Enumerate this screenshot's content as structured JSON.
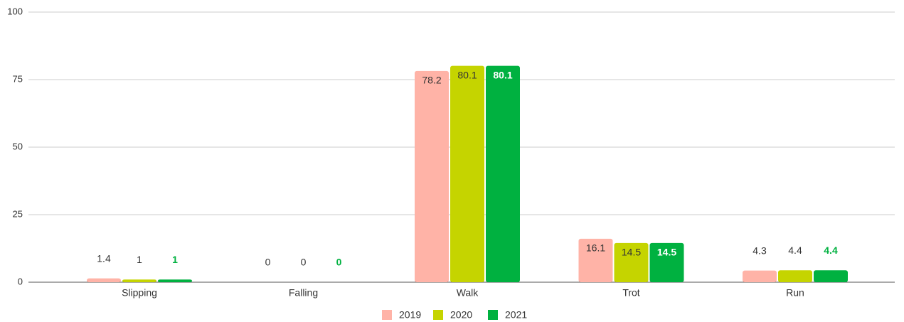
{
  "chart_data": {
    "type": "bar",
    "categories": [
      "Slipping",
      "Falling",
      "Walk",
      "Trot",
      "Run"
    ],
    "series": [
      {
        "name": "2019",
        "color": "#ffb3a7",
        "values": [
          1.4,
          0,
          78.2,
          16.1,
          4.3
        ]
      },
      {
        "name": "2020",
        "color": "#c5d400",
        "values": [
          1,
          0,
          80.1,
          14.5,
          4.4
        ]
      },
      {
        "name": "2021",
        "color": "#00b140",
        "values": [
          1,
          0,
          80.1,
          14.5,
          4.4
        ]
      }
    ],
    "ylim": [
      0,
      100
    ],
    "yticks": [
      0,
      25,
      50,
      75,
      100
    ],
    "grid": true,
    "legend": "bottom"
  }
}
